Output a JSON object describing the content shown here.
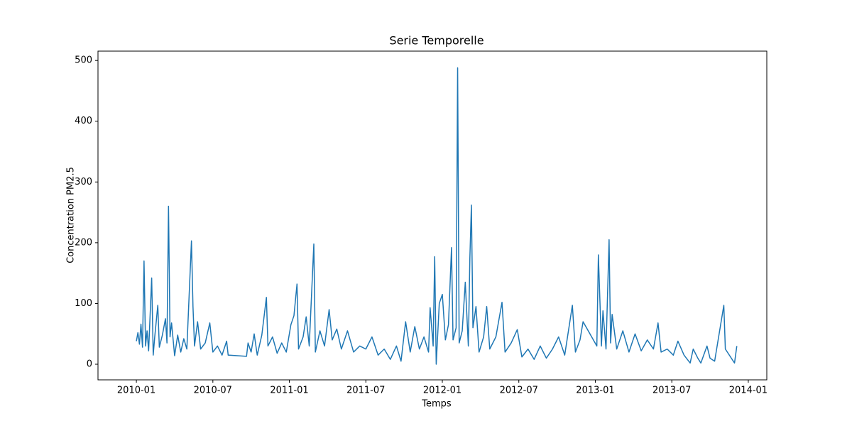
{
  "chart_data": {
    "type": "line",
    "title": "Serie Temporelle",
    "x_label": "Temps",
    "y_label": "Concentration PM2.5",
    "color": "#1f77b4",
    "x": [
      2010.0,
      2010.01,
      2010.02,
      2010.03,
      2010.04,
      2010.05,
      2010.06,
      2010.07,
      2010.08,
      2010.1,
      2010.11,
      2010.12,
      2010.14,
      2010.15,
      2010.17,
      2010.19,
      2010.2,
      2010.21,
      2010.22,
      2010.23,
      2010.25,
      2010.27,
      2010.29,
      2010.31,
      2010.33,
      2010.36,
      2010.37,
      2010.38,
      2010.4,
      2010.42,
      2010.45,
      2010.48,
      2010.5,
      2010.53,
      2010.56,
      2010.59,
      2010.6,
      2010.72,
      2010.73,
      2010.75,
      2010.77,
      2010.79,
      2010.82,
      2010.85,
      2010.86,
      2010.89,
      2010.92,
      2010.95,
      2010.98,
      2011.01,
      2011.03,
      2011.05,
      2011.06,
      2011.09,
      2011.11,
      2011.13,
      2011.16,
      2011.17,
      2011.2,
      2011.23,
      2011.26,
      2011.28,
      2011.31,
      2011.34,
      2011.38,
      2011.42,
      2011.46,
      2011.5,
      2011.54,
      2011.58,
      2011.62,
      2011.66,
      2011.7,
      2011.73,
      2011.76,
      2011.79,
      2011.82,
      2011.85,
      2011.88,
      2011.91,
      2011.92,
      2011.94,
      2011.95,
      2011.96,
      2011.98,
      2012.0,
      2012.02,
      2012.04,
      2012.06,
      2012.07,
      2012.09,
      2012.1,
      2012.11,
      2012.13,
      2012.15,
      2012.17,
      2012.18,
      2012.19,
      2012.2,
      2012.22,
      2012.24,
      2012.27,
      2012.29,
      2012.31,
      2012.35,
      2012.39,
      2012.41,
      2012.45,
      2012.49,
      2012.52,
      2012.56,
      2012.6,
      2012.64,
      2012.68,
      2012.72,
      2012.76,
      2012.8,
      2012.85,
      2012.87,
      2012.9,
      2012.92,
      2013.01,
      2013.02,
      2013.04,
      2013.05,
      2013.07,
      2013.09,
      2013.1,
      2013.11,
      2013.14,
      2013.18,
      2013.22,
      2013.26,
      2013.3,
      2013.34,
      2013.38,
      2013.41,
      2013.43,
      2013.47,
      2013.51,
      2013.54,
      2013.58,
      2013.62,
      2013.64,
      2013.67,
      2013.69,
      2013.73,
      2013.75,
      2013.78,
      2013.84,
      2013.85,
      2013.91,
      2013.925
    ],
    "values": [
      38,
      52,
      33,
      66,
      28,
      170,
      30,
      55,
      22,
      142,
      15,
      45,
      97,
      28,
      48,
      75,
      35,
      260,
      45,
      68,
      14,
      48,
      20,
      42,
      25,
      203,
      95,
      30,
      70,
      25,
      35,
      68,
      20,
      30,
      15,
      38,
      15,
      13,
      35,
      20,
      50,
      15,
      48,
      110,
      30,
      45,
      18,
      35,
      20,
      65,
      80,
      132,
      25,
      45,
      78,
      30,
      198,
      20,
      55,
      30,
      90,
      40,
      58,
      25,
      55,
      20,
      30,
      25,
      45,
      15,
      25,
      8,
      30,
      5,
      70,
      20,
      62,
      25,
      45,
      20,
      93,
      30,
      177,
      0,
      100,
      115,
      40,
      65,
      192,
      40,
      60,
      488,
      35,
      55,
      135,
      30,
      175,
      262,
      60,
      95,
      20,
      45,
      95,
      25,
      45,
      102,
      20,
      35,
      57,
      12,
      25,
      8,
      30,
      10,
      25,
      45,
      15,
      97,
      20,
      40,
      70,
      30,
      180,
      30,
      88,
      25,
      205,
      35,
      82,
      25,
      55,
      20,
      50,
      22,
      40,
      25,
      68,
      20,
      25,
      15,
      38,
      15,
      2,
      25,
      10,
      2,
      30,
      10,
      5,
      97,
      25,
      2,
      30
    ],
    "xlim": [
      2009.749,
      2014.121
    ],
    "xticks": [
      {
        "value": 2010.0,
        "label": "2010-01"
      },
      {
        "value": 2010.5,
        "label": "2010-07"
      },
      {
        "value": 2011.0,
        "label": "2011-01"
      },
      {
        "value": 2011.5,
        "label": "2011-07"
      },
      {
        "value": 2012.0,
        "label": "2012-01"
      },
      {
        "value": 2012.5,
        "label": "2012-07"
      },
      {
        "value": 2013.0,
        "label": "2013-01"
      },
      {
        "value": 2013.5,
        "label": "2013-07"
      },
      {
        "value": 2014.0,
        "label": "2014-01"
      }
    ],
    "ylim": [
      -25.7,
      515.4
    ],
    "yticks": [
      0,
      100,
      200,
      300,
      400,
      500
    ]
  }
}
